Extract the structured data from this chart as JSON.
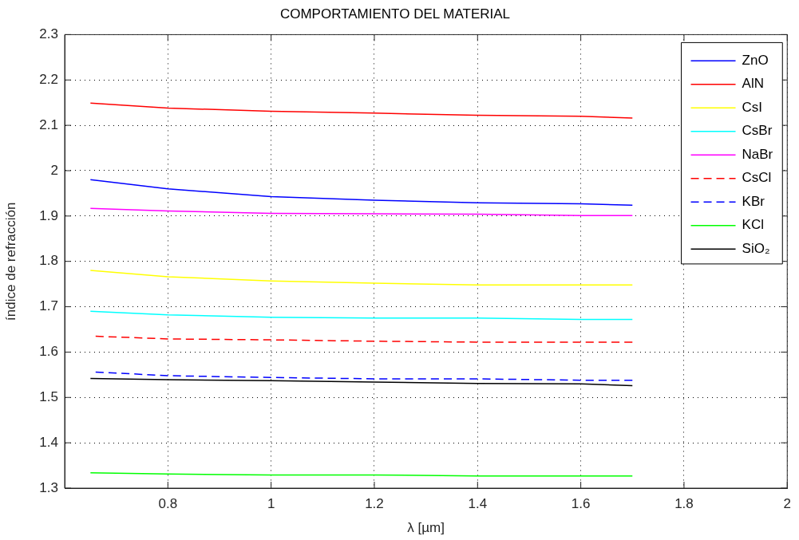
{
  "chart_data": {
    "type": "line",
    "title": "COMPORTAMIENTO DEL MATERIAL",
    "xlabel": "λ [µm]",
    "ylabel": "índice de refracción",
    "xlim": [
      0.6,
      2
    ],
    "xticks": [
      0.8,
      1,
      1.2,
      1.4,
      1.6,
      1.8,
      2
    ],
    "ylim": [
      1.3,
      2.3
    ],
    "yticks": [
      1.3,
      1.4,
      1.5,
      1.6,
      1.7,
      1.8,
      1.9,
      2,
      2.1,
      2.2,
      2.3
    ],
    "grid": true,
    "legend": "top right",
    "marker": "none",
    "series": [
      {
        "name": "ZnO",
        "color": "#0000ff",
        "line_style": "solid",
        "x": [
          0.65,
          0.8,
          1,
          1.2,
          1.4,
          1.6,
          1.7
        ],
        "values": [
          1.98,
          1.96,
          1.943,
          1.935,
          1.929,
          1.927,
          1.924
        ]
      },
      {
        "name": "AlN",
        "color": "#ff0000",
        "line_style": "solid",
        "x": [
          0.65,
          0.8,
          1,
          1.2,
          1.4,
          1.6,
          1.7
        ],
        "values": [
          2.149,
          2.138,
          2.131,
          2.127,
          2.122,
          2.12,
          2.116
        ]
      },
      {
        "name": "CsI",
        "color": "#ffff00",
        "line_style": "solid",
        "x": [
          0.65,
          0.8,
          1,
          1.2,
          1.4,
          1.6,
          1.7
        ],
        "values": [
          1.78,
          1.766,
          1.757,
          1.752,
          1.748,
          1.748,
          1.748
        ]
      },
      {
        "name": "CsBr",
        "color": "#00ffff",
        "line_style": "solid",
        "x": [
          0.65,
          0.8,
          1,
          1.2,
          1.4,
          1.6,
          1.7
        ],
        "values": [
          1.69,
          1.682,
          1.677,
          1.675,
          1.675,
          1.672,
          1.672
        ]
      },
      {
        "name": "NaBr",
        "color": "#ff00ff",
        "line_style": "solid",
        "x": [
          0.65,
          0.8,
          1,
          1.2,
          1.4,
          1.6,
          1.7
        ],
        "values": [
          1.917,
          1.911,
          1.906,
          1.905,
          1.904,
          1.901,
          1.901
        ]
      },
      {
        "name": "CsCl",
        "color": "#ff0000",
        "line_style": "dashed",
        "x": [
          0.66,
          0.8,
          1,
          1.2,
          1.4,
          1.6,
          1.7
        ],
        "values": [
          1.635,
          1.629,
          1.627,
          1.624,
          1.622,
          1.622,
          1.622
        ]
      },
      {
        "name": "KBr",
        "color": "#0000ff",
        "line_style": "dashed",
        "x": [
          0.66,
          0.8,
          1,
          1.2,
          1.4,
          1.6,
          1.7
        ],
        "values": [
          1.556,
          1.548,
          1.544,
          1.541,
          1.541,
          1.538,
          1.538
        ]
      },
      {
        "name": "KCl",
        "color": "#00ff00",
        "line_style": "solid",
        "x": [
          0.65,
          0.8,
          1,
          1.2,
          1.4,
          1.6,
          1.7
        ],
        "values": [
          1.334,
          1.331,
          1.329,
          1.329,
          1.327,
          1.327,
          1.327
        ]
      },
      {
        "name": "SiO₂",
        "color": "#000000",
        "line_style": "solid",
        "x": [
          0.65,
          0.8,
          1,
          1.2,
          1.4,
          1.6,
          1.7
        ],
        "values": [
          1.542,
          1.539,
          1.537,
          1.534,
          1.531,
          1.53,
          1.526
        ]
      }
    ]
  }
}
